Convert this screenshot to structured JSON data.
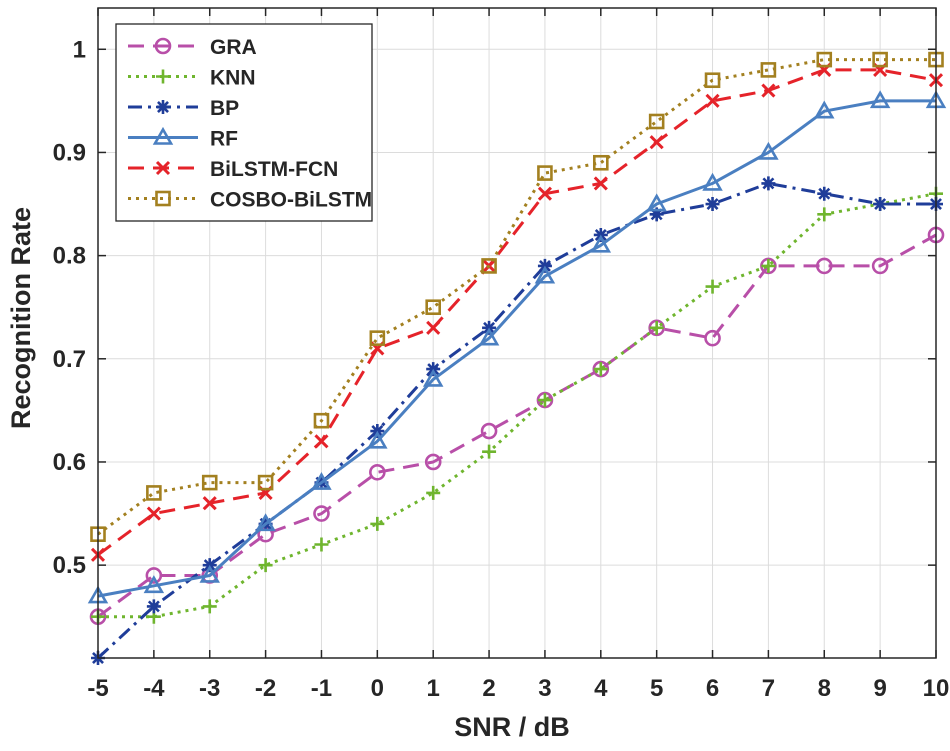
{
  "chart_data": {
    "type": "line",
    "title": "",
    "xlabel": "SNR / dB",
    "ylabel": "Recognition Rate",
    "x": [
      -5,
      -4,
      -3,
      -2,
      -1,
      0,
      1,
      2,
      3,
      4,
      5,
      6,
      7,
      8,
      9,
      10
    ],
    "xlim": [
      -5,
      10
    ],
    "ylim": [
      0.41,
      1.04
    ],
    "xticks": [
      "-5",
      "-4",
      "-3",
      "-2",
      "-1",
      "0",
      "1",
      "2",
      "3",
      "4",
      "5",
      "6",
      "7",
      "8",
      "9",
      "10"
    ],
    "yticks": [
      0.5,
      0.6,
      0.7,
      0.8,
      0.9,
      1
    ],
    "ytick_labels": [
      "0.5",
      "0.6",
      "0.7",
      "0.8",
      "0.9",
      "1"
    ],
    "grid": true,
    "legend_position": "top-left",
    "series": [
      {
        "name": "GRA",
        "color": "#b84fa8",
        "line": "dash",
        "marker": "circle",
        "values": [
          0.45,
          0.49,
          0.49,
          0.53,
          0.55,
          0.59,
          0.6,
          0.63,
          0.66,
          0.69,
          0.73,
          0.72,
          0.79,
          0.79,
          0.79,
          0.82
        ]
      },
      {
        "name": "KNN",
        "color": "#6fb52e",
        "line": "dot",
        "marker": "plus",
        "values": [
          0.45,
          0.45,
          0.46,
          0.5,
          0.52,
          0.54,
          0.57,
          0.61,
          0.66,
          0.69,
          0.73,
          0.77,
          0.79,
          0.84,
          0.85,
          0.86
        ]
      },
      {
        "name": "BP",
        "color": "#1f3d99",
        "line": "dashdot",
        "marker": "asterisk",
        "values": [
          0.41,
          0.46,
          0.5,
          0.54,
          0.58,
          0.63,
          0.69,
          0.73,
          0.79,
          0.82,
          0.84,
          0.85,
          0.87,
          0.86,
          0.85,
          0.85
        ]
      },
      {
        "name": "RF",
        "color": "#4a7fc1",
        "line": "solid",
        "marker": "triangle",
        "values": [
          0.47,
          0.48,
          0.49,
          0.54,
          0.58,
          0.62,
          0.68,
          0.72,
          0.78,
          0.81,
          0.85,
          0.87,
          0.9,
          0.94,
          0.95,
          0.95
        ]
      },
      {
        "name": "BiLSTM-FCN",
        "color": "#e5232a",
        "line": "dash",
        "marker": "x",
        "values": [
          0.51,
          0.55,
          0.56,
          0.57,
          0.62,
          0.71,
          0.73,
          0.79,
          0.86,
          0.87,
          0.91,
          0.95,
          0.96,
          0.98,
          0.98,
          0.97
        ]
      },
      {
        "name": "COSBO-BiLSTM",
        "color": "#a38020",
        "line": "dot",
        "marker": "square",
        "values": [
          0.53,
          0.57,
          0.58,
          0.58,
          0.64,
          0.72,
          0.75,
          0.79,
          0.88,
          0.89,
          0.93,
          0.97,
          0.98,
          0.99,
          0.99,
          0.99
        ]
      }
    ]
  }
}
